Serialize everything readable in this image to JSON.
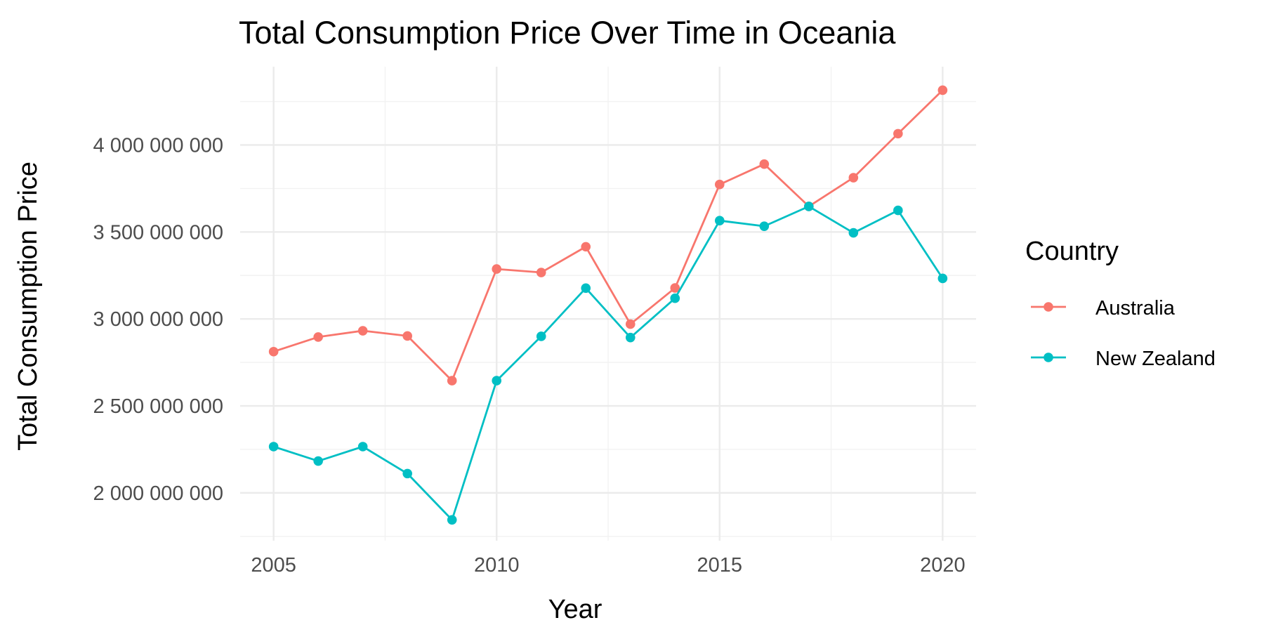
{
  "chart_data": {
    "type": "line",
    "title": "Total Consumption Price Over Time in Oceania",
    "xlabel": "Year",
    "ylabel": "Total Consumption Price",
    "x": [
      2005,
      2006,
      2007,
      2008,
      2009,
      2010,
      2011,
      2012,
      2013,
      2014,
      2015,
      2016,
      2017,
      2018,
      2019,
      2020
    ],
    "xlim": [
      2004.25,
      2020.75
    ],
    "ylim": [
      1725000000,
      4450000000
    ],
    "x_ticks": [
      2005,
      2010,
      2015,
      2020
    ],
    "x_tick_labels": [
      "2005",
      "2010",
      "2015",
      "2020"
    ],
    "y_ticks": [
      2000000000,
      2500000000,
      3000000000,
      3500000000,
      4000000000
    ],
    "y_tick_labels": [
      "2 000 000 000",
      "2 500 000 000",
      "3 000 000 000",
      "3 500 000 000",
      "4 000 000 000"
    ],
    "grid": true,
    "legend": {
      "title": "Country",
      "position": "right"
    },
    "series": [
      {
        "name": "Australia",
        "color": "#F8766D",
        "values": [
          2812000000,
          2896000000,
          2932000000,
          2902000000,
          2645000000,
          3287000000,
          3267000000,
          3415000000,
          2970000000,
          3178000000,
          3773000000,
          3890000000,
          3647000000,
          3812000000,
          4065000000,
          4315000000
        ]
      },
      {
        "name": "New Zealand",
        "color": "#00BFC4",
        "values": [
          2266000000,
          2183000000,
          2266000000,
          2111000000,
          1845000000,
          2645000000,
          2900000000,
          3177000000,
          2893000000,
          3119000000,
          3565000000,
          3533000000,
          3647000000,
          3495000000,
          3624000000,
          3233000000
        ]
      }
    ]
  }
}
